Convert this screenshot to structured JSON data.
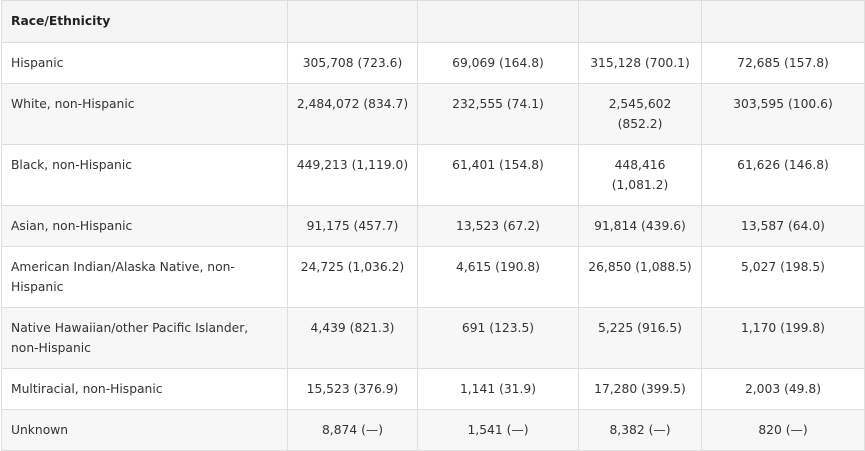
{
  "table": {
    "section_header": "Race/Ethnicity",
    "rows": [
      {
        "label": "Hispanic",
        "values": [
          "305,708 (723.6)",
          "69,069 (164.8)",
          "315,128 (700.1)",
          "72,685 (157.8)"
        ]
      },
      {
        "label": "White, non-Hispanic",
        "values": [
          "2,484,072 (834.7)",
          "232,555 (74.1)",
          "2,545,602 (852.2)",
          "303,595 (100.6)"
        ]
      },
      {
        "label": "Black, non-Hispanic",
        "values": [
          "449,213 (1,119.0)",
          "61,401 (154.8)",
          "448,416 (1,081.2)",
          "61,626 (146.8)"
        ]
      },
      {
        "label": "Asian, non-Hispanic",
        "values": [
          "91,175 (457.7)",
          "13,523 (67.2)",
          "91,814 (439.6)",
          "13,587 (64.0)"
        ]
      },
      {
        "label": "American Indian/Alaska Native, non-Hispanic",
        "values": [
          "24,725 (1,036.2)",
          "4,615 (190.8)",
          "26,850 (1,088.5)",
          "5,027 (198.5)"
        ]
      },
      {
        "label": "Native Hawaiian/other Pacific Islander, non-Hispanic",
        "values": [
          "4,439 (821.3)",
          "691 (123.5)",
          "5,225 (916.5)",
          "1,170 (199.8)"
        ]
      },
      {
        "label": "Multiracial, non-Hispanic",
        "values": [
          "15,523 (376.9)",
          "1,141 (31.9)",
          "17,280 (399.5)",
          "2,003 (49.8)"
        ]
      },
      {
        "label": "Unknown",
        "values": [
          "8,874 (—)",
          "1,541 (—)",
          "8,382 (—)",
          "820 (—)"
        ]
      }
    ]
  }
}
